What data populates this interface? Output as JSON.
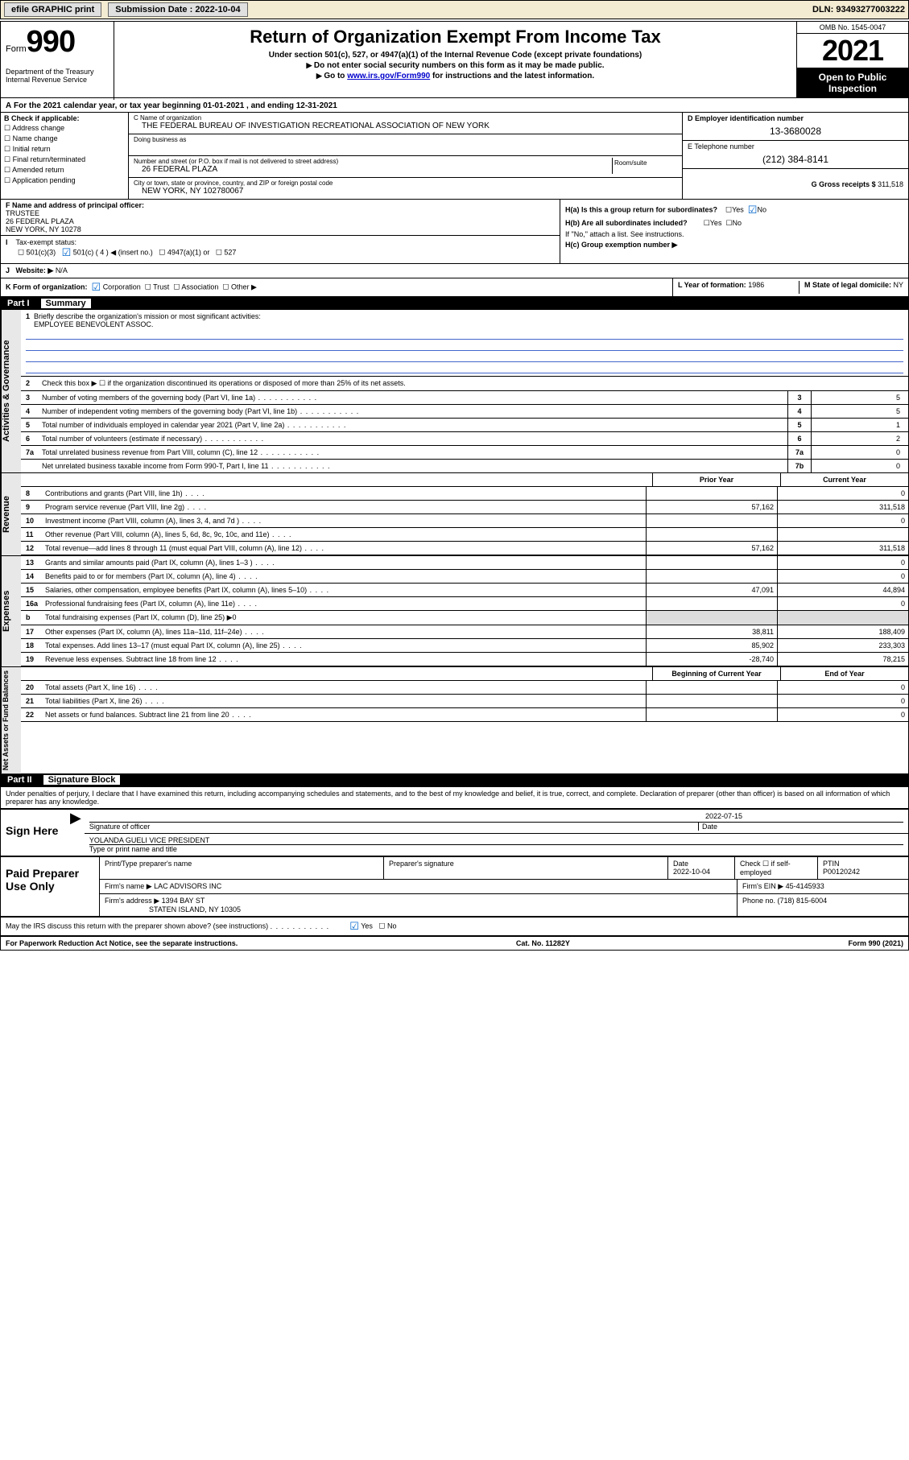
{
  "toolbar": {
    "efile": "efile GRAPHIC print",
    "subdate_lbl": "Submission Date : 2022-10-04",
    "dln_lbl": "DLN: 93493277003222"
  },
  "header": {
    "form_label": "Form",
    "form_num": "990",
    "title": "Return of Organization Exempt From Income Tax",
    "sub1": "Under section 501(c), 527, or 4947(a)(1) of the Internal Revenue Code (except private foundations)",
    "sub2": "Do not enter social security numbers on this form as it may be made public.",
    "sub3_pre": "Go to ",
    "sub3_link": "www.irs.gov/Form990",
    "sub3_post": " for instructions and the latest information.",
    "omb": "OMB No. 1545-0047",
    "year": "2021",
    "open": "Open to Public Inspection",
    "dept": "Department of the Treasury\nInternal Revenue Service"
  },
  "a": {
    "text": "For the 2021 calendar year, or tax year beginning 01-01-2021    , and ending 12-31-2021"
  },
  "b": {
    "title": "B Check if applicable:",
    "items": [
      "Address change",
      "Name change",
      "Initial return",
      "Final return/terminated",
      "Amended return",
      "Application pending"
    ]
  },
  "c": {
    "name_lbl": "C Name of organization",
    "name": "THE FEDERAL BUREAU OF INVESTIGATION RECREATIONAL ASSOCIATION OF NEW YORK",
    "dba_lbl": "Doing business as",
    "street_lbl": "Number and street (or P.O. box if mail is not delivered to street address)",
    "room_lbl": "Room/suite",
    "street": "26 FEDERAL PLAZA",
    "city_lbl": "City or town, state or province, country, and ZIP or foreign postal code",
    "city": "NEW YORK, NY  102780067"
  },
  "d": {
    "ein_lbl": "D Employer identification number",
    "ein": "13-3680028",
    "phone_lbl": "E Telephone number",
    "phone": "(212) 384-8141",
    "gross_lbl": "G Gross receipts $ ",
    "gross": "311,518"
  },
  "f": {
    "lbl": "F Name and address of principal officer:",
    "name": "TRUSTEE",
    "addr1": "26 FEDERAL PLAZA",
    "addr2": "NEW YORK, NY  10278"
  },
  "h": {
    "a": "H(a)  Is this a group return for subordinates?",
    "a_no": "No",
    "a_yes": "Yes",
    "b": "H(b)  Are all subordinates included?",
    "b_note": "If \"No,\" attach a list. See instructions.",
    "c": "H(c)  Group exemption number ▶"
  },
  "i": {
    "lbl": "Tax-exempt status:",
    "c3": "501(c)(3)",
    "c": "501(c) ( 4 ) ◀ (insert no.)",
    "a1": "4947(a)(1) or",
    "527": "527"
  },
  "j": {
    "lbl": "Website: ▶",
    "val": "N/A"
  },
  "k": {
    "lbl": "K Form of organization:",
    "corp": "Corporation",
    "trust": "Trust",
    "assoc": "Association",
    "other": "Other ▶"
  },
  "l": {
    "lbl": "L Year of formation: ",
    "val": "1986"
  },
  "m": {
    "lbl": "M State of legal domicile: ",
    "val": "NY"
  },
  "part1": {
    "header": "Part I",
    "title": "Summary",
    "vtab1": "Activities & Governance",
    "vtab2": "Revenue",
    "vtab3": "Expenses",
    "vtab4": "Net Assets or Fund Balances",
    "q1": "Briefly describe the organization's mission or most significant activities:",
    "q1val": "EMPLOYEE BENEVOLENT ASSOC.",
    "q2": "Check this box ▶ ☐  if the organization discontinued its operations or disposed of more than 25% of its net assets.",
    "lines_gov": [
      {
        "n": "3",
        "d": "Number of voting members of the governing body (Part VI, line 1a)",
        "box": "3",
        "v": "5"
      },
      {
        "n": "4",
        "d": "Number of independent voting members of the governing body (Part VI, line 1b)",
        "box": "4",
        "v": "5"
      },
      {
        "n": "5",
        "d": "Total number of individuals employed in calendar year 2021 (Part V, line 2a)",
        "box": "5",
        "v": "1"
      },
      {
        "n": "6",
        "d": "Total number of volunteers (estimate if necessary)",
        "box": "6",
        "v": "2"
      },
      {
        "n": "7a",
        "d": "Total unrelated business revenue from Part VIII, column (C), line 12",
        "box": "7a",
        "v": "0"
      },
      {
        "n": "",
        "d": "Net unrelated business taxable income from Form 990-T, Part I, line 11",
        "box": "7b",
        "v": "0"
      }
    ],
    "prior": "Prior Year",
    "current": "Current Year",
    "lines_rev": [
      {
        "n": "8",
        "d": "Contributions and grants (Part VIII, line 1h)",
        "c1": "",
        "c2": "0"
      },
      {
        "n": "9",
        "d": "Program service revenue (Part VIII, line 2g)",
        "c1": "57,162",
        "c2": "311,518"
      },
      {
        "n": "10",
        "d": "Investment income (Part VIII, column (A), lines 3, 4, and 7d )",
        "c1": "",
        "c2": "0"
      },
      {
        "n": "11",
        "d": "Other revenue (Part VIII, column (A), lines 5, 6d, 8c, 9c, 10c, and 11e)",
        "c1": "",
        "c2": ""
      },
      {
        "n": "12",
        "d": "Total revenue—add lines 8 through 11 (must equal Part VIII, column (A), line 12)",
        "c1": "57,162",
        "c2": "311,518"
      }
    ],
    "lines_exp": [
      {
        "n": "13",
        "d": "Grants and similar amounts paid (Part IX, column (A), lines 1–3 )",
        "c1": "",
        "c2": "0"
      },
      {
        "n": "14",
        "d": "Benefits paid to or for members (Part IX, column (A), line 4)",
        "c1": "",
        "c2": "0"
      },
      {
        "n": "15",
        "d": "Salaries, other compensation, employee benefits (Part IX, column (A), lines 5–10)",
        "c1": "47,091",
        "c2": "44,894"
      },
      {
        "n": "16a",
        "d": "Professional fundraising fees (Part IX, column (A), line 11e)",
        "c1": "",
        "c2": "0"
      },
      {
        "n": "b",
        "d": "Total fundraising expenses (Part IX, column (D), line 25)  ▶0",
        "shade": true
      },
      {
        "n": "17",
        "d": "Other expenses (Part IX, column (A), lines 11a–11d, 11f–24e)",
        "c1": "38,811",
        "c2": "188,409"
      },
      {
        "n": "18",
        "d": "Total expenses. Add lines 13–17 (must equal Part IX, column (A), line 25)",
        "c1": "85,902",
        "c2": "233,303"
      },
      {
        "n": "19",
        "d": "Revenue less expenses. Subtract line 18 from line 12",
        "c1": "-28,740",
        "c2": "78,215"
      }
    ],
    "beg": "Beginning of Current Year",
    "end": "End of Year",
    "lines_net": [
      {
        "n": "20",
        "d": "Total assets (Part X, line 16)",
        "c1": "",
        "c2": "0"
      },
      {
        "n": "21",
        "d": "Total liabilities (Part X, line 26)",
        "c1": "",
        "c2": "0"
      },
      {
        "n": "22",
        "d": "Net assets or fund balances. Subtract line 21 from line 20",
        "c1": "",
        "c2": "0"
      }
    ]
  },
  "part2": {
    "header": "Part II",
    "title": "Signature Block",
    "declare": "Under penalties of perjury, I declare that I have examined this return, including accompanying schedules and statements, and to the best of my knowledge and belief, it is true, correct, and complete. Declaration of preparer (other than officer) is based on all information of which preparer has any knowledge.",
    "sign_here": "Sign Here",
    "sig_officer": "Signature of officer",
    "sig_date": "2022-07-15",
    "date_lbl": "Date",
    "sig_name": "YOLANDA GUELI  VICE PRESIDENT",
    "sig_name_lbl": "Type or print name and title",
    "paid": "Paid Preparer Use Only",
    "prep_name_lbl": "Print/Type preparer's name",
    "prep_sig_lbl": "Preparer's signature",
    "prep_date_lbl": "Date",
    "prep_date": "2022-10-04",
    "prep_check": "Check ☐ if self-employed",
    "ptin_lbl": "PTIN",
    "ptin": "P00120242",
    "firm_name_lbl": "Firm's name      ▶",
    "firm_name": "LAC ADVISORS INC",
    "firm_ein_lbl": "Firm's EIN ▶",
    "firm_ein": "45-4145933",
    "firm_addr_lbl": "Firm's address  ▶",
    "firm_addr": "1394 BAY ST",
    "firm_addr2": "STATEN ISLAND, NY  10305",
    "firm_phone_lbl": "Phone no. ",
    "firm_phone": "(718) 815-6004",
    "discuss": "May the IRS discuss this return with the preparer shown above? (see instructions)",
    "yes": "Yes",
    "no": "No"
  },
  "footer": {
    "left": "For Paperwork Reduction Act Notice, see the separate instructions.",
    "mid": "Cat. No. 11282Y",
    "right": "Form 990 (2021)"
  }
}
